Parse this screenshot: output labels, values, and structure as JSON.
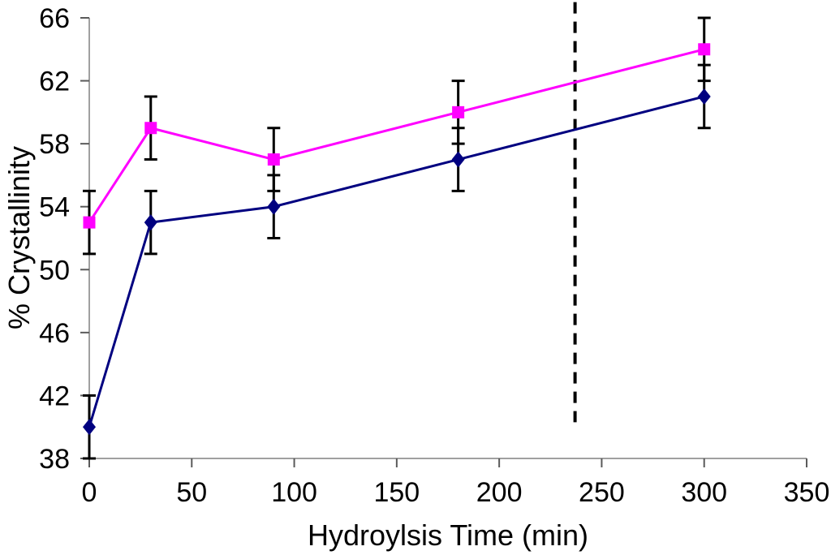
{
  "chart_data": {
    "type": "line",
    "title": "",
    "xlabel": "Hydroylsis Time (min)",
    "ylabel": "% Crystallinity",
    "xlim": [
      0,
      350
    ],
    "ylim": [
      38,
      66
    ],
    "xticks": [
      0,
      50,
      100,
      150,
      200,
      250,
      300,
      350
    ],
    "yticks": [
      38,
      42,
      46,
      50,
      54,
      58,
      62,
      66
    ],
    "grid": false,
    "legend_position": "none",
    "x": [
      0,
      30,
      90,
      180,
      300
    ],
    "series": [
      {
        "name": "upper-series-magenta-squares",
        "marker": "square",
        "color": "#FF00FF",
        "values": [
          53,
          59,
          57,
          60,
          64
        ],
        "error_bars": [
          2,
          2,
          2,
          2,
          2
        ]
      },
      {
        "name": "lower-series-navy-diamonds",
        "marker": "diamond",
        "color": "#000080",
        "values": [
          40,
          53,
          54,
          57,
          61
        ],
        "error_bars": [
          2,
          2,
          2,
          2,
          2
        ]
      }
    ],
    "annotations": [
      {
        "type": "vline",
        "style": "dashed",
        "x": 237,
        "y_from": 40.3,
        "y_to": 67,
        "color": "#000000"
      }
    ],
    "colors": {
      "axis": "#808080",
      "tick": "#5a5a5a",
      "error_bar": "#000000",
      "background": "#FFFFFF",
      "text": "#000000"
    }
  }
}
